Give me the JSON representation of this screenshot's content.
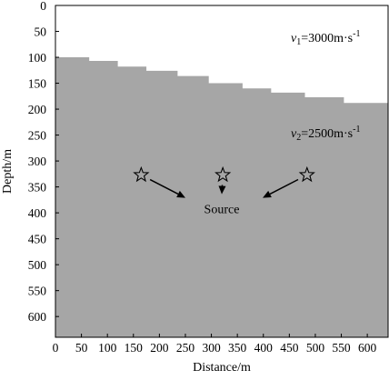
{
  "figure": {
    "y_axis": {
      "label": "Depth/m",
      "ticks": [
        "0",
        "50",
        "100",
        "150",
        "200",
        "250",
        "300",
        "350",
        "400",
        "450",
        "500",
        "550",
        "600"
      ]
    },
    "x_axis": {
      "label": "Distance/m",
      "ticks": [
        "0",
        "50",
        "100",
        "150",
        "200",
        "250",
        "300",
        "350",
        "400",
        "450",
        "500",
        "550",
        "600"
      ]
    },
    "upper_layer": {
      "symbol": "v",
      "subscript": "1",
      "value": "=3000m·s",
      "superscript": "-1",
      "color": "#ffffff"
    },
    "lower_layer": {
      "symbol": "v",
      "subscript": "2",
      "value": "=2500m·s",
      "superscript": "-1",
      "color": "#a6a6a6"
    },
    "source_label": "Source",
    "receivers": [
      {
        "x": 165,
        "depth": 327
      },
      {
        "x": 322,
        "depth": 327
      },
      {
        "x": 484,
        "depth": 327
      }
    ],
    "interface_steps": [
      {
        "x_start": 0,
        "x_end": 65,
        "depth": 100
      },
      {
        "x_start": 65,
        "x_end": 120,
        "depth": 107
      },
      {
        "x_start": 120,
        "x_end": 175,
        "depth": 118
      },
      {
        "x_start": 175,
        "x_end": 235,
        "depth": 126
      },
      {
        "x_start": 235,
        "x_end": 295,
        "depth": 136
      },
      {
        "x_start": 295,
        "x_end": 360,
        "depth": 150
      },
      {
        "x_start": 360,
        "x_end": 415,
        "depth": 160
      },
      {
        "x_start": 415,
        "x_end": 480,
        "depth": 168
      },
      {
        "x_start": 480,
        "x_end": 555,
        "depth": 177
      },
      {
        "x_start": 555,
        "x_end": 640,
        "depth": 188
      }
    ],
    "x_range": [
      0,
      640
    ],
    "depth_range": [
      0,
      640
    ],
    "source_position": {
      "x": 320,
      "depth": 392
    }
  }
}
